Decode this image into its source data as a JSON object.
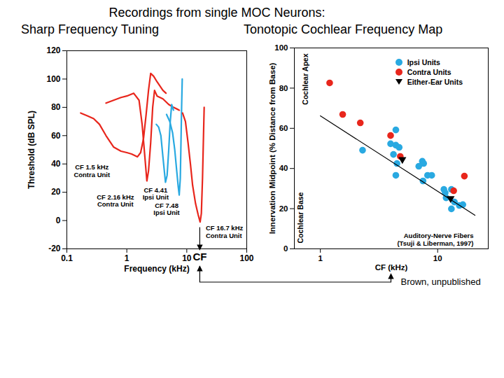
{
  "title": "Recordings from single MOC Neurons:",
  "caption": "Brown, unpublished",
  "chart_data": [
    {
      "type": "line",
      "title": "Sharp Frequency Tuning",
      "x_label": "Frequency (kHz)",
      "y_label": "Threshold (dB SPL)",
      "log": "x",
      "xlim": [
        0.1,
        100
      ],
      "xticks": [
        0.1,
        1,
        10,
        100
      ],
      "ylim": [
        -20,
        120
      ],
      "yticks": [
        -20,
        0,
        20,
        40,
        60,
        80,
        100,
        120
      ],
      "annotations": [
        "CF"
      ],
      "series": [
        {
          "name": "CF 1.5 kHz\nContra Unit",
          "color": "#e8261c",
          "x": [
            0.17,
            0.22,
            0.28,
            0.35,
            0.45,
            0.6,
            0.8,
            1.0,
            1.2,
            1.5,
            1.7,
            1.9,
            2.1,
            2.3,
            2.5,
            2.8,
            3.2,
            4.0,
            4.5
          ],
          "values": [
            76,
            74,
            72,
            68,
            60,
            52,
            49,
            48,
            47,
            45,
            48,
            58,
            75,
            92,
            104,
            102,
            98,
            92,
            90
          ]
        },
        {
          "name": "CF 2.16 kHz\nContra Unit",
          "color": "#e8261c",
          "x": [
            0.45,
            0.6,
            0.8,
            1.0,
            1.3,
            1.6,
            1.8,
            2.0,
            2.16,
            2.3,
            2.5,
            2.7,
            2.9,
            3.2,
            4.0,
            5.0,
            6.0,
            7.5
          ],
          "values": [
            83,
            85,
            87,
            88,
            90,
            85,
            68,
            45,
            28,
            35,
            55,
            80,
            92,
            88,
            86,
            82,
            80,
            78
          ]
        },
        {
          "name": "CF 4.41\nIpsi Unit",
          "color": "#29a9e1",
          "x": [
            3.1,
            3.4,
            3.7,
            4.0,
            4.41,
            4.7,
            5.0,
            5.3,
            5.6,
            6.0
          ],
          "values": [
            68,
            66,
            60,
            45,
            27,
            32,
            50,
            70,
            82,
            78
          ]
        },
        {
          "name": "CF 7.48\nIpsi Unit",
          "color": "#29a9e1",
          "x": [
            4.6,
            5.2,
            5.8,
            6.3,
            6.8,
            7.2,
            7.48,
            7.8,
            8.0,
            8.2,
            8.4
          ],
          "values": [
            75,
            70,
            62,
            50,
            35,
            24,
            18,
            30,
            55,
            80,
            100
          ]
        },
        {
          "name": "CF 16.7 kHz\nContra Unit",
          "color": "#e8261c",
          "x": [
            8.5,
            9.5,
            10.5,
            11.5,
            12.5,
            14,
            15.5,
            16.7,
            17.5,
            18.3,
            19,
            19.5
          ],
          "values": [
            76,
            70,
            55,
            40,
            25,
            12,
            4,
            -1,
            5,
            30,
            60,
            80
          ]
        }
      ]
    },
    {
      "type": "scatter",
      "title": "Tonotopic Cochlear Frequency Map",
      "x_label": "CF (kHz)",
      "y_label": "Innervation Midpoint (% Distance from Base)",
      "log": "x",
      "xlim": [
        0.6,
        27
      ],
      "xticks": [
        1,
        10
      ],
      "ylim": [
        0,
        100
      ],
      "yticks": [
        0,
        20,
        40,
        60,
        80,
        100
      ],
      "legend": "top-right",
      "annotations": [
        "Cochlear Apex",
        "Cochlear Base"
      ],
      "series": [
        {
          "name": "Ipsi Units",
          "color": "#29a9e1",
          "marker": "circle",
          "x": [
            2.29,
            3.97,
            4.2,
            4.4,
            4.4,
            4.7,
            4.4,
            4.5,
            6.9,
            7.4,
            7.6,
            7.5,
            8.2,
            8.9,
            11.3,
            11.6,
            13.1,
            13.1,
            13.9,
            15.3,
            16.4,
            11.8
          ],
          "values": [
            49.1,
            52.3,
            47,
            51.6,
            59.2,
            50.5,
            36.6,
            42.5,
            41.1,
            43.6,
            42.5,
            33.8,
            36.6,
            36.6,
            29.6,
            27.9,
            29.6,
            19.9,
            23.3,
            21.6,
            22,
            25.4
          ]
        },
        {
          "name": "Contra Units",
          "color": "#e8261c",
          "marker": "circle",
          "x": [
            1.2,
            1.55,
            2.19,
            3.97,
            4.8,
            13.7,
            16.9
          ],
          "values": [
            82.6,
            66.9,
            62.7,
            56.4,
            46,
            28.9,
            36.2
          ]
        },
        {
          "name": "Either-Ear Units",
          "color": "#000000",
          "marker": "triangle-down",
          "x": [
            5.0,
            12.9
          ],
          "values": [
            44.5,
            25.1
          ]
        },
        {
          "name": "Auditory-Nerve Fibers\n(Tsuji & Liberman, 1997)",
          "type": "line",
          "color": "#000000",
          "x": [
            1,
            20.8
          ],
          "values": [
            66.2,
            16.7
          ]
        }
      ]
    }
  ]
}
